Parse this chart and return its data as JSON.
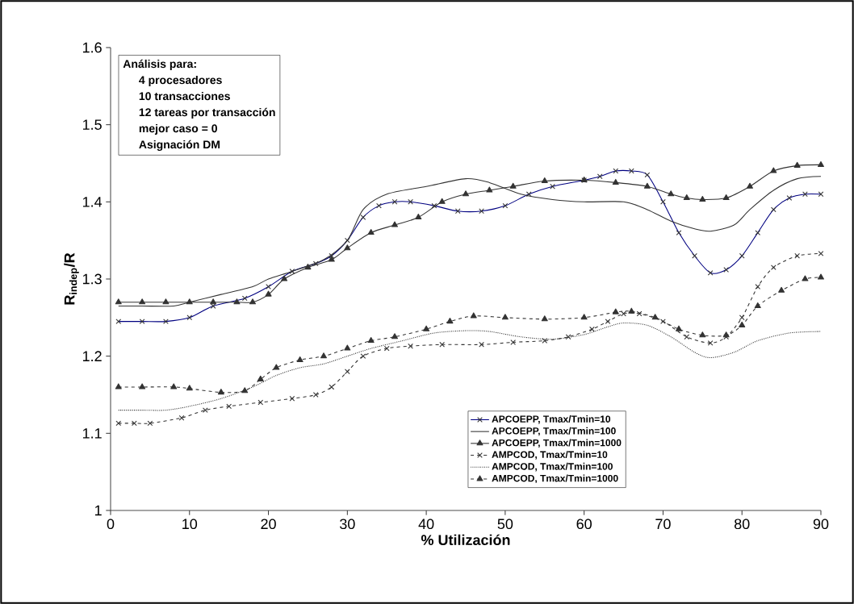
{
  "chart_data": {
    "type": "line",
    "xlabel": "% Utilización",
    "ylabel": "R$_{indep}$/R",
    "xlim": [
      0,
      90
    ],
    "xticks": [
      0,
      10,
      20,
      30,
      40,
      50,
      60,
      70,
      80,
      90
    ],
    "ylim": [
      1,
      1.6
    ],
    "yticks": [
      1,
      1.1,
      1.2,
      1.3,
      1.4,
      1.5,
      1.6
    ],
    "grid": false,
    "legend": "bottom right",
    "annotations": [
      "**Análisis para:**",
      "**4 procesadores**",
      "**10 transacciones**",
      "**12 tareas por transacción**",
      "**mejor caso = 0**",
      "**Asignación DM**"
    ],
    "series": [
      {
        "name": "APCOEPP, Tmax/Tmin=10",
        "color": "#000080",
        "marker": "cross",
        "line_style": "solid",
        "x": [
          1,
          4,
          7,
          10,
          13,
          17,
          20,
          23,
          26,
          28,
          30,
          32,
          34,
          36,
          38,
          41,
          44,
          47,
          50,
          53,
          56,
          60,
          62,
          64,
          66,
          68,
          70,
          72,
          74,
          76,
          78,
          80,
          82,
          84,
          86,
          88,
          90
        ],
        "values": [
          1.245,
          1.245,
          1.245,
          1.25,
          1.265,
          1.275,
          1.29,
          1.31,
          1.32,
          1.33,
          1.35,
          1.38,
          1.395,
          1.4,
          1.4,
          1.395,
          1.388,
          1.388,
          1.395,
          1.41,
          1.42,
          1.428,
          1.433,
          1.44,
          1.44,
          1.435,
          1.4,
          1.36,
          1.33,
          1.308,
          1.312,
          1.33,
          1.36,
          1.39,
          1.405,
          1.41,
          1.41
        ]
      },
      {
        "name": "APCOEPP, Tmax/Tmin=100",
        "color": "#333333",
        "marker": "none",
        "line_style": "solid",
        "x": [
          1,
          4,
          8,
          10,
          14,
          18,
          20,
          23,
          27,
          30,
          32,
          35,
          40,
          45,
          48,
          52,
          56,
          60,
          65,
          68,
          71,
          74,
          76,
          79,
          81,
          84,
          87,
          90
        ],
        "values": [
          1.265,
          1.265,
          1.265,
          1.27,
          1.28,
          1.29,
          1.3,
          1.31,
          1.325,
          1.35,
          1.39,
          1.41,
          1.42,
          1.43,
          1.425,
          1.41,
          1.403,
          1.4,
          1.4,
          1.39,
          1.375,
          1.365,
          1.362,
          1.37,
          1.39,
          1.415,
          1.43,
          1.433
        ]
      },
      {
        "name": "APCOEPP, Tmax/Tmin=1000",
        "color": "#333333",
        "marker": "triangle",
        "line_style": "solid",
        "x": [
          1,
          4,
          7,
          10,
          13,
          16,
          18,
          20,
          22,
          25,
          28,
          30,
          33,
          36,
          39,
          42,
          45,
          48,
          51,
          55,
          60,
          64,
          68,
          71,
          73,
          75,
          78,
          81,
          84,
          87,
          90
        ],
        "values": [
          1.27,
          1.27,
          1.27,
          1.27,
          1.27,
          1.27,
          1.27,
          1.28,
          1.3,
          1.315,
          1.325,
          1.34,
          1.36,
          1.37,
          1.38,
          1.4,
          1.41,
          1.415,
          1.42,
          1.427,
          1.428,
          1.425,
          1.42,
          1.41,
          1.405,
          1.403,
          1.405,
          1.42,
          1.44,
          1.447,
          1.448
        ]
      },
      {
        "name": "AMPCOD, Tmax/Tmin=10",
        "color": "#333333",
        "marker": "cross",
        "line_style": "dashed",
        "x": [
          1,
          3,
          5,
          9,
          12,
          15,
          19,
          23,
          26,
          28,
          30,
          32,
          35,
          38,
          42,
          47,
          51,
          55,
          58,
          61,
          63,
          65,
          67,
          70,
          73,
          76,
          78,
          80,
          82,
          84,
          87,
          90
        ],
        "values": [
          1.113,
          1.113,
          1.113,
          1.12,
          1.13,
          1.135,
          1.14,
          1.145,
          1.15,
          1.16,
          1.18,
          1.2,
          1.21,
          1.213,
          1.215,
          1.215,
          1.218,
          1.22,
          1.225,
          1.235,
          1.245,
          1.255,
          1.255,
          1.245,
          1.225,
          1.217,
          1.225,
          1.25,
          1.29,
          1.315,
          1.33,
          1.333
        ]
      },
      {
        "name": "AMPCOD, Tmax/Tmin=100",
        "color": "#333333",
        "marker": "none",
        "line_style": "dotted",
        "x": [
          1,
          4,
          7,
          10,
          14,
          18,
          21,
          24,
          27,
          30,
          33,
          37,
          41,
          45,
          48,
          52,
          56,
          60,
          63,
          65,
          68,
          71,
          74,
          76,
          79,
          82,
          86,
          90
        ],
        "values": [
          1.13,
          1.13,
          1.13,
          1.135,
          1.145,
          1.16,
          1.175,
          1.185,
          1.19,
          1.2,
          1.21,
          1.22,
          1.23,
          1.233,
          1.232,
          1.225,
          1.222,
          1.228,
          1.238,
          1.243,
          1.24,
          1.225,
          1.205,
          1.198,
          1.205,
          1.22,
          1.23,
          1.232
        ]
      },
      {
        "name": "AMPCOD, Tmax/Tmin=1000",
        "color": "#333333",
        "marker": "triangle",
        "line_style": "dashed",
        "x": [
          1,
          4,
          8,
          10,
          14,
          17,
          19,
          21,
          24,
          27,
          30,
          33,
          36,
          40,
          43,
          46,
          50,
          55,
          60,
          64,
          66,
          69,
          72,
          75,
          78,
          80,
          82,
          85,
          88,
          90
        ],
        "values": [
          1.16,
          1.16,
          1.16,
          1.158,
          1.153,
          1.155,
          1.17,
          1.185,
          1.195,
          1.2,
          1.21,
          1.22,
          1.225,
          1.235,
          1.245,
          1.252,
          1.25,
          1.248,
          1.25,
          1.257,
          1.258,
          1.25,
          1.235,
          1.227,
          1.227,
          1.24,
          1.265,
          1.285,
          1.3,
          1.302
        ]
      }
    ]
  }
}
